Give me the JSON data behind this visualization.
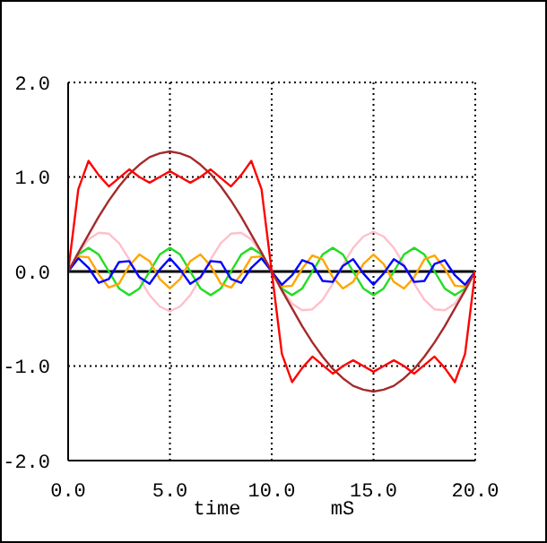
{
  "chart_data": {
    "type": "line",
    "xlabel": "time",
    "annotations": [
      "mS"
    ],
    "x": [
      0,
      0.5,
      1,
      1.5,
      2,
      2.5,
      3,
      3.5,
      4,
      4.5,
      5,
      5.5,
      6,
      6.5,
      7,
      7.5,
      8,
      8.5,
      9,
      9.5,
      10,
      10.5,
      11,
      11.5,
      12,
      12.5,
      13,
      13.5,
      14,
      14.5,
      15,
      15.5,
      16,
      16.5,
      17,
      17.5,
      18,
      18.5,
      19,
      19.5,
      20
    ],
    "series": [
      {
        "color": "#ffc0cb",
        "values": [
          0,
          0.19,
          0.34,
          0.41,
          0.4,
          0.3,
          0.13,
          -0.07,
          -0.25,
          -0.37,
          -0.42,
          -0.37,
          -0.25,
          -0.07,
          0.13,
          0.3,
          0.4,
          0.41,
          0.34,
          0.19,
          0,
          -0.19,
          -0.34,
          -0.41,
          -0.4,
          -0.3,
          -0.13,
          0.07,
          0.25,
          0.37,
          0.42,
          0.37,
          0.25,
          0.07,
          -0.13,
          -0.3,
          -0.4,
          -0.41,
          -0.34,
          -0.19,
          0
        ]
      },
      {
        "color": "#22dd22",
        "values": [
          0,
          0.18,
          0.25,
          0.18,
          0,
          -0.18,
          -0.25,
          -0.18,
          0,
          0.18,
          0.25,
          0.18,
          0,
          -0.18,
          -0.25,
          -0.18,
          0,
          0.18,
          0.25,
          0.18,
          0,
          -0.18,
          -0.25,
          -0.18,
          0,
          0.18,
          0.25,
          0.18,
          0,
          -0.18,
          -0.25,
          -0.18,
          0,
          0.18,
          0.25,
          0.18,
          0,
          -0.18,
          -0.25,
          -0.18,
          0
        ]
      },
      {
        "color": "#ffa500",
        "values": [
          0,
          0.16,
          0.15,
          -0.03,
          -0.17,
          -0.13,
          0.06,
          0.18,
          0.11,
          -0.08,
          -0.18,
          -0.08,
          0.11,
          0.18,
          0.06,
          -0.13,
          -0.17,
          -0.03,
          0.15,
          0.16,
          0,
          -0.16,
          -0.15,
          0.03,
          0.17,
          0.13,
          -0.06,
          -0.18,
          -0.11,
          0.08,
          0.18,
          0.08,
          -0.11,
          -0.18,
          -0.06,
          0.13,
          0.17,
          0.03,
          -0.15,
          -0.16,
          0
        ]
      },
      {
        "color": "#0000ff",
        "values": [
          0,
          0.14,
          0.04,
          -0.12,
          -0.08,
          0.1,
          0.11,
          -0.06,
          -0.13,
          0.02,
          0.14,
          0.02,
          -0.13,
          -0.06,
          0.11,
          0.1,
          -0.08,
          -0.12,
          0.04,
          0.14,
          0,
          -0.14,
          -0.04,
          0.12,
          0.08,
          -0.1,
          -0.11,
          0.06,
          0.13,
          -0.02,
          -0.14,
          -0.02,
          0.13,
          0.06,
          -0.11,
          -0.1,
          0.08,
          0.12,
          -0.04,
          -0.14,
          0
        ]
      },
      {
        "color": "#a52a2a",
        "values": [
          0,
          0.2,
          0.39,
          0.58,
          0.75,
          0.9,
          1.03,
          1.13,
          1.21,
          1.25,
          1.27,
          1.25,
          1.21,
          1.13,
          1.03,
          0.9,
          0.75,
          0.58,
          0.39,
          0.2,
          0,
          -0.2,
          -0.39,
          -0.58,
          -0.75,
          -0.9,
          -1.03,
          -1.13,
          -1.21,
          -1.25,
          -1.27,
          -1.25,
          -1.21,
          -1.13,
          -1.03,
          -0.9,
          -0.75,
          -0.58,
          -0.39,
          -0.2,
          0
        ]
      },
      {
        "color": "#ff0000",
        "values": [
          0,
          0.87,
          1.17,
          1.02,
          0.9,
          0.99,
          1.08,
          1,
          0.94,
          1,
          1.06,
          1,
          0.94,
          1,
          1.08,
          0.99,
          0.9,
          1.02,
          1.17,
          0.87,
          0,
          -0.87,
          -1.17,
          -1.02,
          -0.9,
          -0.99,
          -1.08,
          -1,
          -0.94,
          -1,
          -1.06,
          -1,
          -0.94,
          -1,
          -1.08,
          -0.99,
          -0.9,
          -1.02,
          -1.17,
          -0.87,
          0
        ]
      }
    ],
    "xlim": [
      0,
      20
    ],
    "xticks": [
      {
        "value": 0,
        "label": "0.0"
      },
      {
        "value": 5,
        "label": "5.0"
      },
      {
        "value": 10,
        "label": "10.0"
      },
      {
        "value": 15,
        "label": "15.0"
      },
      {
        "value": 20,
        "label": "20.0"
      }
    ],
    "ylim": [
      -2,
      2
    ],
    "yticks": [
      {
        "value": -2,
        "label": "-2.0"
      },
      {
        "value": -1,
        "label": "-1.0"
      },
      {
        "value": 0,
        "label": "0.0"
      },
      {
        "value": 1,
        "label": "1.0"
      },
      {
        "value": 2,
        "label": "2.0"
      }
    ],
    "grid": true,
    "ref_lines": [
      {
        "axis": "y",
        "value": 0,
        "color": "#000000"
      }
    ]
  }
}
